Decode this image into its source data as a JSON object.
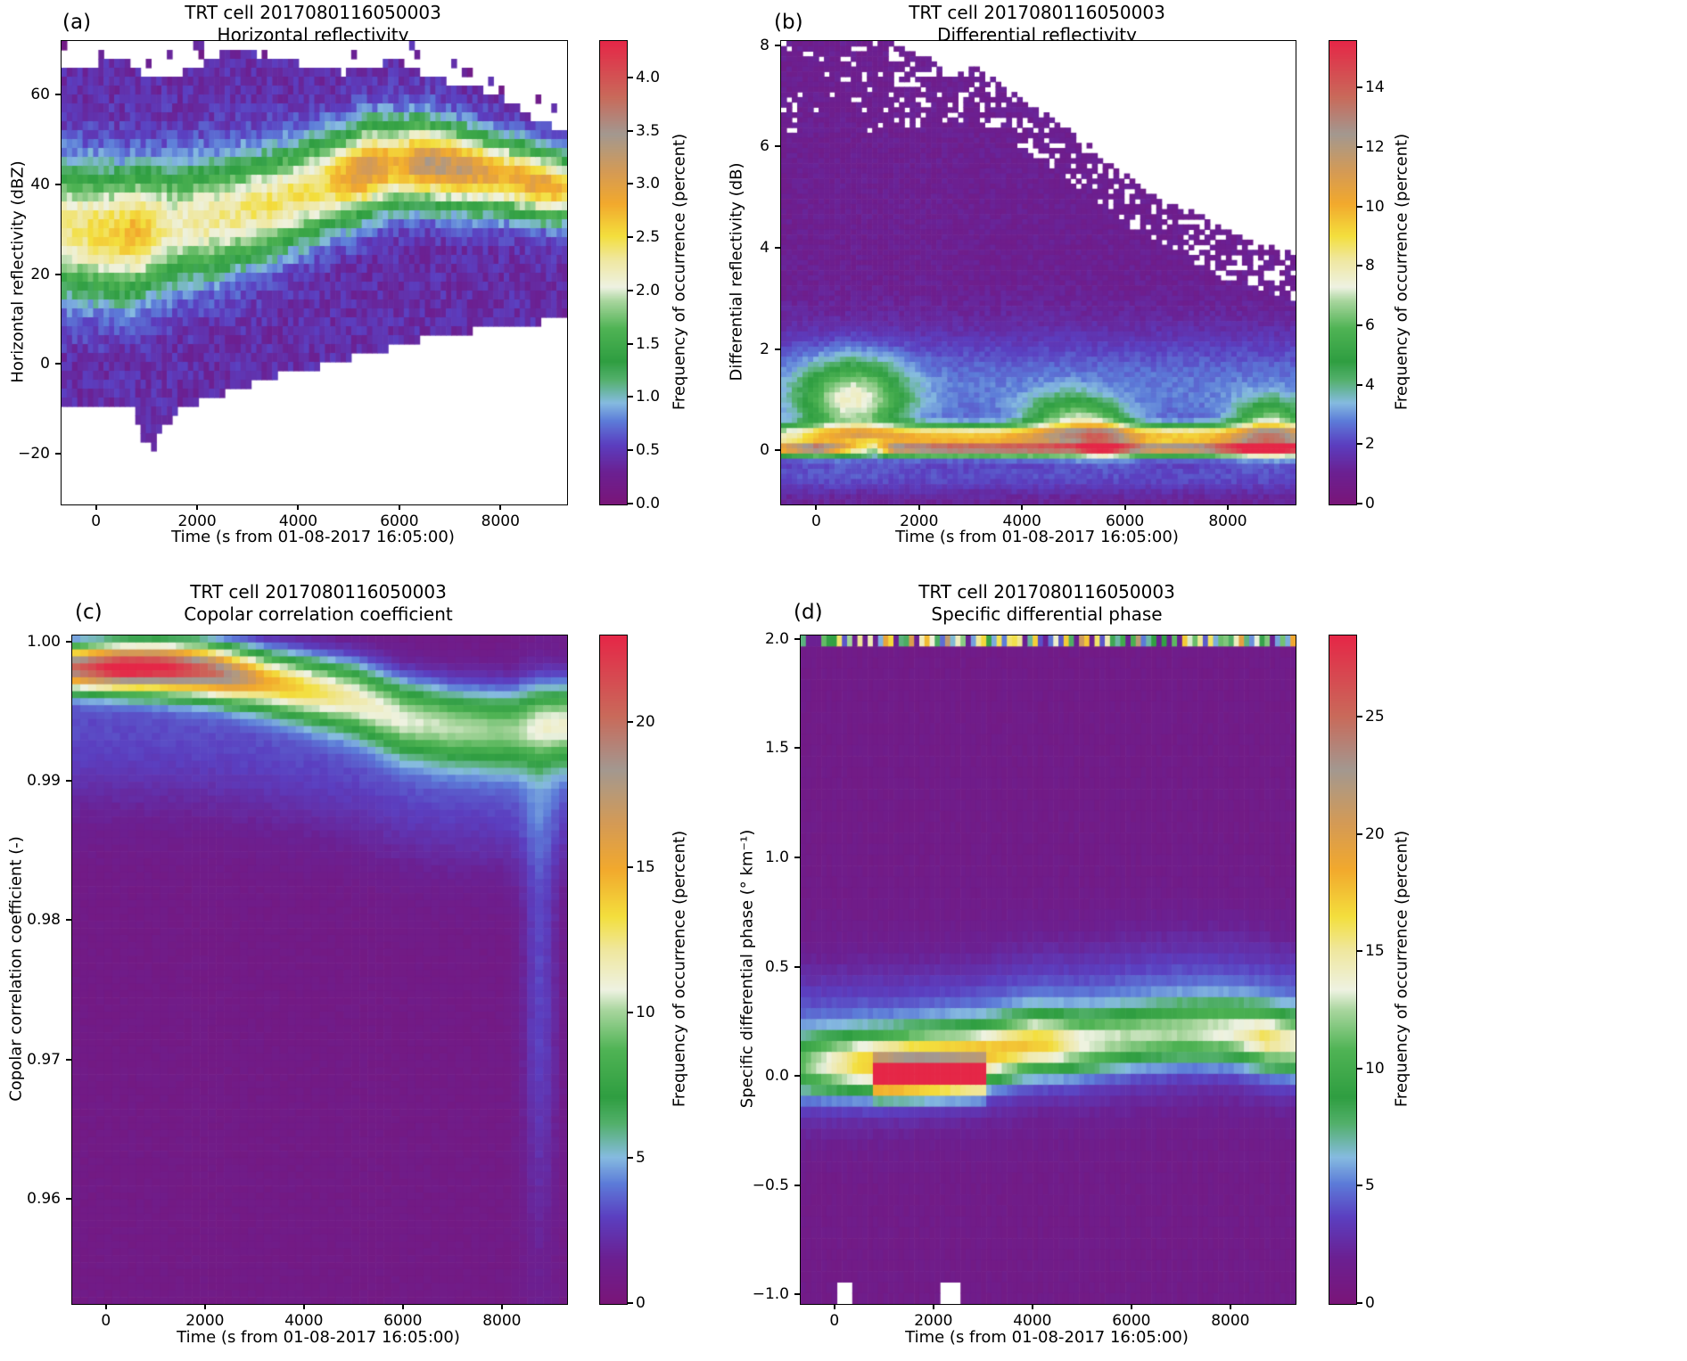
{
  "colormap": [
    {
      "p": 0.0,
      "c": "#7a1578"
    },
    {
      "p": 0.07,
      "c": "#6b2092"
    },
    {
      "p": 0.13,
      "c": "#5b3fc0"
    },
    {
      "p": 0.18,
      "c": "#5c7bd8"
    },
    {
      "p": 0.22,
      "c": "#86bbe0"
    },
    {
      "p": 0.27,
      "c": "#53b06b"
    },
    {
      "p": 0.31,
      "c": "#2f9e41"
    },
    {
      "p": 0.38,
      "c": "#4fb354"
    },
    {
      "p": 0.44,
      "c": "#a9d69e"
    },
    {
      "p": 0.47,
      "c": "#eef2e2"
    },
    {
      "p": 0.53,
      "c": "#efe79e"
    },
    {
      "p": 0.58,
      "c": "#f3df3d"
    },
    {
      "p": 0.65,
      "c": "#f2a92d"
    },
    {
      "p": 0.72,
      "c": "#d49a56"
    },
    {
      "p": 0.8,
      "c": "#a39890"
    },
    {
      "p": 0.88,
      "c": "#c96a5a"
    },
    {
      "p": 1.0,
      "c": "#e52747"
    }
  ],
  "chart_data": [
    {
      "type": "heatmap",
      "kind": "a",
      "label": "(a)",
      "title": "TRT cell 2017080116050003",
      "subtitle": "Horizontal reflectivity",
      "xlabel": "Time (s from 01-08-2017 16:05:00)",
      "ylabel": "Horizontal reflectivity (dBZ)",
      "x_range": [
        -700,
        9300
      ],
      "y_range": [
        -31,
        72
      ],
      "x_ticks": [
        {
          "v": 0,
          "label": "0"
        },
        {
          "v": 2000,
          "label": "2000"
        },
        {
          "v": 4000,
          "label": "4000"
        },
        {
          "v": 6000,
          "label": "6000"
        },
        {
          "v": 8000,
          "label": "8000"
        }
      ],
      "y_ticks": [
        {
          "v": -20,
          "label": "−20"
        },
        {
          "v": 0,
          "label": "0"
        },
        {
          "v": 20,
          "label": "20"
        },
        {
          "v": 40,
          "label": "40"
        },
        {
          "v": 60,
          "label": "60"
        }
      ],
      "colorbar": {
        "label": "Frequency of occurrence (percent)",
        "vmin": 0,
        "vmax": 4.35,
        "ticks": [
          {
            "v": 0,
            "label": "0.0"
          },
          {
            "v": 0.5,
            "label": "0.5"
          },
          {
            "v": 1.0,
            "label": "1.0"
          },
          {
            "v": 1.5,
            "label": "1.5"
          },
          {
            "v": 2.0,
            "label": "2.0"
          },
          {
            "v": 2.5,
            "label": "2.5"
          },
          {
            "v": 3.0,
            "label": "3.0"
          },
          {
            "v": 3.5,
            "label": "3.5"
          },
          {
            "v": 4.0,
            "label": "4.0"
          }
        ]
      },
      "model": {
        "grid": [
          96,
          52
        ],
        "base": 0.35,
        "noise": 0.3,
        "vmax": 4.35,
        "top_env": [
          [
            -700,
            66
          ],
          [
            0,
            67
          ],
          [
            400,
            69
          ],
          [
            900,
            65
          ],
          [
            1400,
            64
          ],
          [
            1900,
            66
          ],
          [
            2400,
            69
          ],
          [
            2900,
            70
          ],
          [
            3400,
            68
          ],
          [
            3900,
            67
          ],
          [
            4400,
            66
          ],
          [
            4900,
            65
          ],
          [
            5400,
            66
          ],
          [
            5900,
            68
          ],
          [
            6400,
            65
          ],
          [
            6900,
            63
          ],
          [
            7400,
            62
          ],
          [
            7900,
            60
          ],
          [
            8400,
            56
          ],
          [
            9300,
            52
          ]
        ],
        "bot_env": [
          [
            -700,
            -10
          ],
          [
            700,
            -10
          ],
          [
            900,
            -16
          ],
          [
            1100,
            -19
          ],
          [
            1300,
            -14
          ],
          [
            1600,
            -10
          ],
          [
            2100,
            -8
          ],
          [
            2600,
            -6
          ],
          [
            3100,
            -4
          ],
          [
            3600,
            -2
          ],
          [
            4100,
            -1
          ],
          [
            4600,
            0
          ],
          [
            5100,
            2
          ],
          [
            5600,
            3
          ],
          [
            6100,
            5
          ],
          [
            6600,
            6
          ],
          [
            7100,
            7
          ],
          [
            7600,
            8
          ],
          [
            8100,
            9
          ],
          [
            9300,
            10
          ]
        ],
        "center": [
          [
            -700,
            30
          ],
          [
            500,
            29
          ],
          [
            1500,
            31
          ],
          [
            2500,
            33
          ],
          [
            3500,
            36
          ],
          [
            4500,
            40
          ],
          [
            5500,
            44
          ],
          [
            6500,
            45
          ],
          [
            7500,
            43
          ],
          [
            8500,
            41
          ],
          [
            9300,
            39
          ]
        ],
        "width": [
          [
            -700,
            10
          ],
          [
            2000,
            9
          ],
          [
            5000,
            7
          ],
          [
            9300,
            5
          ]
        ],
        "peak": [
          [
            -700,
            1.9
          ],
          [
            300,
            2.2
          ],
          [
            800,
            2.35
          ],
          [
            1500,
            1.8
          ],
          [
            2500,
            1.9
          ],
          [
            3500,
            2.0
          ],
          [
            4500,
            2.1
          ],
          [
            5300,
            2.75
          ],
          [
            5900,
            2.4
          ],
          [
            6500,
            2.9
          ],
          [
            7200,
            2.8
          ],
          [
            8000,
            2.4
          ],
          [
            8800,
            2.6
          ],
          [
            9300,
            2.2
          ]
        ]
      }
    },
    {
      "type": "heatmap",
      "kind": "b",
      "label": "(b)",
      "title": "TRT cell 2017080116050003",
      "subtitle": "Differential reflectivity",
      "xlabel": "Time (s from 01-08-2017 16:05:00)",
      "ylabel": "Differential reflectivity (dB)",
      "x_range": [
        -700,
        9300
      ],
      "y_range": [
        -1.05,
        8.1
      ],
      "x_ticks": [
        {
          "v": 0,
          "label": "0"
        },
        {
          "v": 2000,
          "label": "2000"
        },
        {
          "v": 4000,
          "label": "4000"
        },
        {
          "v": 6000,
          "label": "6000"
        },
        {
          "v": 8000,
          "label": "8000"
        }
      ],
      "y_ticks": [
        {
          "v": 0,
          "label": "0"
        },
        {
          "v": 2,
          "label": "2"
        },
        {
          "v": 4,
          "label": "4"
        },
        {
          "v": 6,
          "label": "6"
        },
        {
          "v": 8,
          "label": "8"
        }
      ],
      "colorbar": {
        "label": "Frequency of occurrence (percent)",
        "vmin": 0,
        "vmax": 15.6,
        "ticks": [
          {
            "v": 0,
            "label": "0"
          },
          {
            "v": 2,
            "label": "2"
          },
          {
            "v": 4,
            "label": "4"
          },
          {
            "v": 6,
            "label": "6"
          },
          {
            "v": 8,
            "label": "8"
          },
          {
            "v": 10,
            "label": "10"
          },
          {
            "v": 12,
            "label": "12"
          },
          {
            "v": 14,
            "label": "14"
          }
        ]
      },
      "model": {
        "grid": [
          96,
          91
        ],
        "base": 0.9,
        "noise": 0.5,
        "vmax": 15.6,
        "mask_top": [
          [
            -700,
            8.4
          ],
          [
            1200,
            8.4
          ],
          [
            1600,
            8.0
          ],
          [
            2100,
            7.8
          ],
          [
            2600,
            7.4
          ],
          [
            3100,
            7.6
          ],
          [
            3600,
            7.2
          ],
          [
            4100,
            6.9
          ],
          [
            4600,
            6.6
          ],
          [
            5100,
            6.2
          ],
          [
            5600,
            5.8
          ],
          [
            6100,
            5.4
          ],
          [
            6600,
            5.0
          ],
          [
            7100,
            4.8
          ],
          [
            7600,
            4.6
          ],
          [
            8100,
            4.3
          ],
          [
            8600,
            4.1
          ],
          [
            9300,
            3.9
          ]
        ],
        "peak0": [
          [
            -700,
            9
          ],
          [
            0,
            11
          ],
          [
            700,
            6
          ],
          [
            1100,
            4
          ],
          [
            1500,
            10
          ],
          [
            2500,
            12
          ],
          [
            4000,
            12
          ],
          [
            5000,
            11
          ],
          [
            5500,
            13
          ],
          [
            6500,
            10
          ],
          [
            7500,
            11
          ],
          [
            8500,
            14.5
          ],
          [
            9300,
            13
          ]
        ],
        "band_amp": [
          [
            -700,
            5
          ],
          [
            0,
            6
          ],
          [
            1500,
            7.2
          ],
          [
            9300,
            7.2
          ]
        ],
        "blue_band": [
          1.2,
          0.8,
          1.8
        ],
        "blobs": [
          [
            700,
            1.0,
            700,
            0.55,
            5.0
          ],
          [
            4900,
            0.6,
            600,
            0.35,
            4
          ],
          [
            5600,
            0.35,
            400,
            0.3,
            3
          ],
          [
            8800,
            0.5,
            500,
            0.35,
            4.5
          ]
        ]
      }
    },
    {
      "type": "heatmap",
      "kind": "c",
      "label": "(c)",
      "title": "TRT cell 2017080116050003",
      "subtitle": "Copolar correlation coefficient",
      "xlabel": "Time (s from 01-08-2017 16:05:00)",
      "ylabel": "Copolar correlation coefficient (-)",
      "x_range": [
        -700,
        9300
      ],
      "y_range": [
        0.9525,
        1.0005
      ],
      "x_ticks": [
        {
          "v": 0,
          "label": "0"
        },
        {
          "v": 2000,
          "label": "2000"
        },
        {
          "v": 4000,
          "label": "4000"
        },
        {
          "v": 6000,
          "label": "6000"
        },
        {
          "v": 8000,
          "label": "8000"
        }
      ],
      "y_ticks": [
        {
          "v": 0.96,
          "label": "0.96"
        },
        {
          "v": 0.97,
          "label": "0.97"
        },
        {
          "v": 0.98,
          "label": "0.98"
        },
        {
          "v": 0.99,
          "label": "0.99"
        },
        {
          "v": 1.0,
          "label": "1.00"
        }
      ],
      "colorbar": {
        "label": "Frequency of occurrence (percent)",
        "vmin": 0,
        "vmax": 23,
        "ticks": [
          {
            "v": 0,
            "label": "0"
          },
          {
            "v": 5,
            "label": "5"
          },
          {
            "v": 10,
            "label": "10"
          },
          {
            "v": 15,
            "label": "15"
          },
          {
            "v": 20,
            "label": "20"
          }
        ]
      },
      "model": {
        "grid": [
          62,
          96
        ],
        "base": 0.8,
        "noise": 0.35,
        "vmax": 23,
        "center": [
          [
            -700,
            0.9982
          ],
          [
            1000,
            0.9982
          ],
          [
            2000,
            0.998
          ],
          [
            3000,
            0.9974
          ],
          [
            4000,
            0.9967
          ],
          [
            5000,
            0.996
          ],
          [
            6000,
            0.9946
          ],
          [
            7000,
            0.994
          ],
          [
            8000,
            0.9938
          ],
          [
            9300,
            0.9942
          ]
        ],
        "width": [
          [
            -700,
            0.0011
          ],
          [
            3000,
            0.0014
          ],
          [
            6000,
            0.0019
          ],
          [
            9300,
            0.002
          ]
        ],
        "peak": [
          [
            -700,
            18
          ],
          [
            300,
            22
          ],
          [
            1200,
            21
          ],
          [
            2200,
            18
          ],
          [
            3200,
            13
          ],
          [
            4200,
            11
          ],
          [
            5200,
            9.5
          ],
          [
            6200,
            8.5
          ],
          [
            7200,
            8
          ],
          [
            8200,
            7.5
          ],
          [
            9300,
            9
          ]
        ],
        "spread_amp": 2.3,
        "col_blob": [
          8750,
          0.975,
          260,
          0.013,
          2.2
        ]
      }
    },
    {
      "type": "heatmap",
      "kind": "d",
      "label": "(d)",
      "title": "TRT cell 2017080116050003",
      "subtitle": "Specific differential phase",
      "xlabel": "Time (s from 01-08-2017 16:05:00)",
      "ylabel": "Specific differential phase (° km⁻¹)",
      "x_range": [
        -700,
        9300
      ],
      "y_range": [
        -1.04,
        2.02
      ],
      "x_ticks": [
        {
          "v": 0,
          "label": "0"
        },
        {
          "v": 2000,
          "label": "2000"
        },
        {
          "v": 4000,
          "label": "4000"
        },
        {
          "v": 6000,
          "label": "6000"
        },
        {
          "v": 8000,
          "label": "8000"
        }
      ],
      "y_ticks": [
        {
          "v": -1.0,
          "label": "−1.0"
        },
        {
          "v": -0.5,
          "label": "−0.5"
        },
        {
          "v": 0.0,
          "label": "0.0"
        },
        {
          "v": 0.5,
          "label": "0.5"
        },
        {
          "v": 1.0,
          "label": "1.0"
        },
        {
          "v": 1.5,
          "label": "1.5"
        },
        {
          "v": 2.0,
          "label": "2.0"
        }
      ],
      "colorbar": {
        "label": "Frequency of occurrence (percent)",
        "vmin": 0,
        "vmax": 28.5,
        "ticks": [
          {
            "v": 0,
            "label": "0"
          },
          {
            "v": 5,
            "label": "5"
          },
          {
            "v": 10,
            "label": "10"
          },
          {
            "v": 15,
            "label": "15"
          },
          {
            "v": 20,
            "label": "20"
          },
          {
            "v": 25,
            "label": "25"
          }
        ]
      },
      "model": {
        "grid": [
          96,
          61
        ],
        "base": 1.15,
        "noise": 0.45,
        "vmax": 28.5,
        "center": [
          [
            -700,
            0.05
          ],
          [
            1000,
            0.06
          ],
          [
            2000,
            0.08
          ],
          [
            3000,
            0.1
          ],
          [
            4000,
            0.15
          ],
          [
            5000,
            0.15
          ],
          [
            6000,
            0.18
          ],
          [
            7000,
            0.2
          ],
          [
            8000,
            0.2
          ],
          [
            9300,
            0.15
          ]
        ],
        "peak": [
          [
            -700,
            6
          ],
          [
            500,
            12
          ],
          [
            1500,
            14
          ],
          [
            2500,
            13
          ],
          [
            3500,
            12.5
          ],
          [
            4300,
            12
          ],
          [
            5000,
            8.5
          ],
          [
            6000,
            7.5
          ],
          [
            7000,
            7.5
          ],
          [
            8000,
            8.5
          ],
          [
            8700,
            11
          ],
          [
            9300,
            9
          ]
        ],
        "width": 0.09,
        "band_amp": 4.2,
        "band_width": 0.23,
        "hot": [
          800,
          3100,
          19,
          0.05
        ],
        "top_stripe_y": 1.955,
        "mask_boxes": [
          [
            60,
            -1.04,
            330,
            0.11
          ],
          [
            2150,
            -1.04,
            330,
            0.11
          ]
        ]
      }
    }
  ]
}
